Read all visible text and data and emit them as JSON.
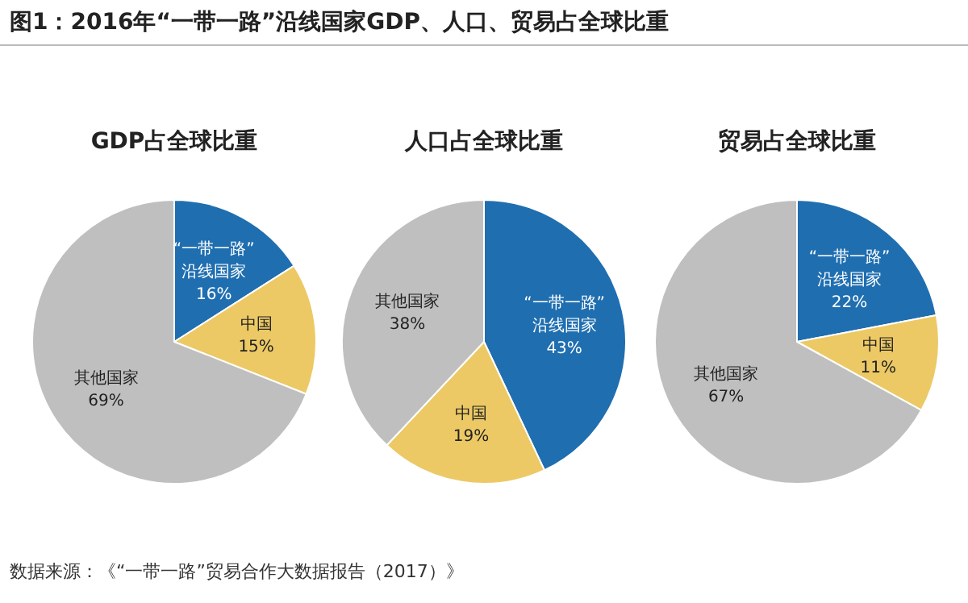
{
  "chart_data": [
    {
      "type": "other",
      "title": "图1：2016年“一带一路”沿线国家GDP、人口、贸易占全球比重",
      "annotations": [
        "数据来源：《“一带一路”贸易合作大数据报告（2017）》"
      ]
    },
    {
      "type": "pie",
      "title": "GDP占全球比重",
      "categories": [
        "“一带一路”沿线国家",
        "中国",
        "其他国家"
      ],
      "values": [
        16,
        15,
        69
      ],
      "value_labels": [
        "16%",
        "15%",
        "69%"
      ],
      "colors": [
        "#1f6eb0",
        "#ecc965",
        "#bfbfbf"
      ]
    },
    {
      "type": "pie",
      "title": "人口占全球比重",
      "categories": [
        "“一带一路”沿线国家",
        "中国",
        "其他国家"
      ],
      "values": [
        43,
        19,
        38
      ],
      "value_labels": [
        "43%",
        "19%",
        "38%"
      ],
      "colors": [
        "#1f6eb0",
        "#ecc965",
        "#bfbfbf"
      ]
    },
    {
      "type": "pie",
      "title": "贸易占全球比重",
      "categories": [
        "“一带一路”沿线国家",
        "中国",
        "其他国家"
      ],
      "values": [
        22,
        11,
        67
      ],
      "value_labels": [
        "22%",
        "11%",
        "67%"
      ],
      "colors": [
        "#1f6eb0",
        "#ecc965",
        "#bfbfbf"
      ]
    }
  ]
}
